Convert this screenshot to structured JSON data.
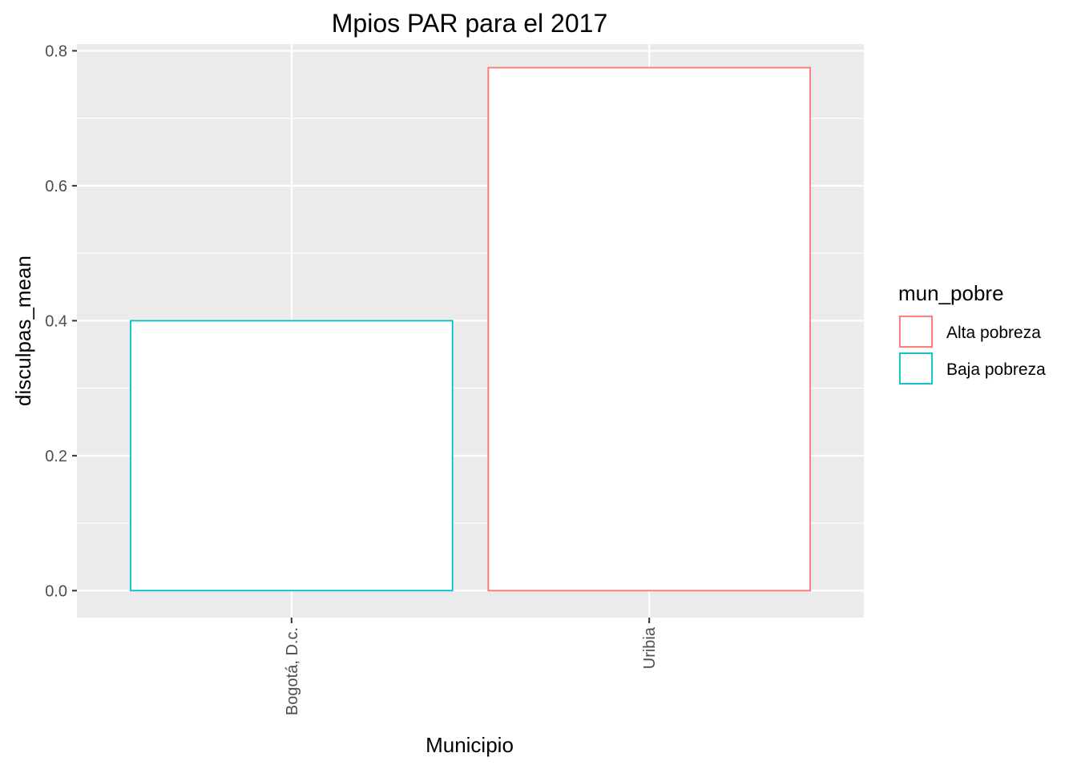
{
  "chart_data": {
    "type": "bar",
    "title": "Mpios PAR para el 2017",
    "xlabel": "Municipio",
    "ylabel": "disculpas_mean",
    "categories": [
      "Bogotá, D.c.",
      "Uribia"
    ],
    "values": [
      0.4,
      0.775
    ],
    "groups": [
      "Baja pobreza",
      "Alta pobreza"
    ],
    "ylim": [
      -0.04,
      0.81
    ],
    "yticks": [
      0.0,
      0.2,
      0.4,
      0.6,
      0.8
    ],
    "ytick_labels": [
      "0.0",
      "0.2",
      "0.4",
      "0.6",
      "0.8"
    ],
    "grid": true,
    "legend": {
      "title": "mun_pobre",
      "position": "right",
      "entries": [
        {
          "label": "Alta pobreza",
          "color": "#F8766D"
        },
        {
          "label": "Baja pobreza",
          "color": "#00BFC4"
        }
      ]
    },
    "colors": {
      "panel_background": "#EBEBEB",
      "grid": "#FFFFFF",
      "bar_fill": "#FFFFFF"
    }
  }
}
